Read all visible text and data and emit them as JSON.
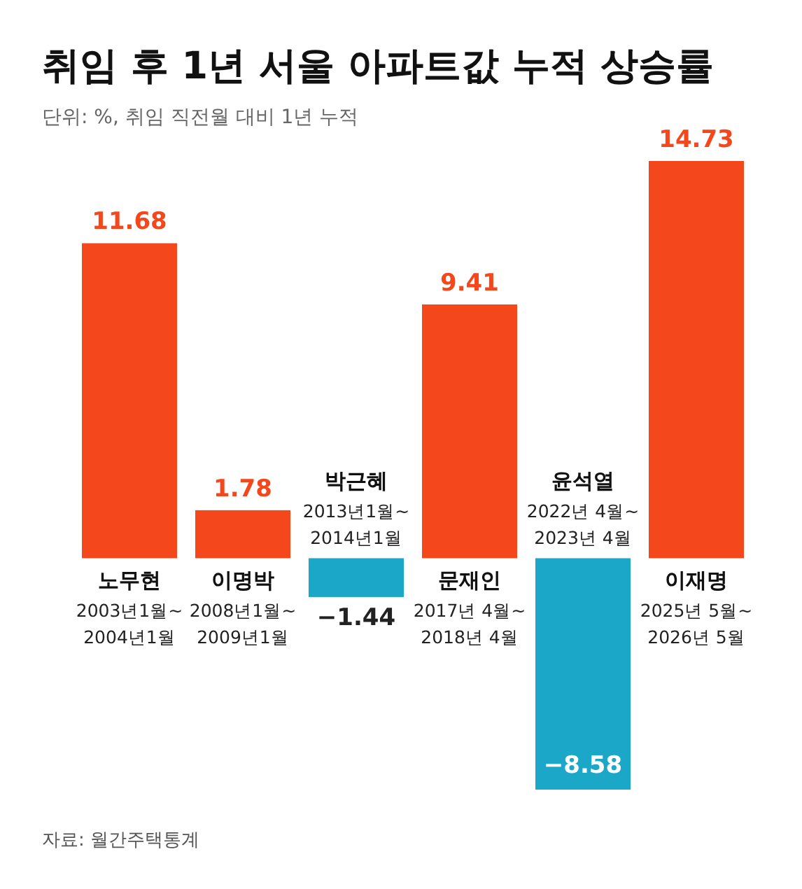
{
  "chart_data": {
    "type": "bar",
    "title": "취임 후 1년 서울 아파트값 누적 상승률",
    "subtitle": "단위: %, 취임 직전월 대비 1년 누적",
    "categories": [
      "노무현",
      "이명박",
      "박근혜",
      "문재인",
      "윤석열",
      "이재명"
    ],
    "values": [
      11.68,
      1.78,
      -1.44,
      9.41,
      -8.58,
      14.73
    ],
    "colors": [
      "#f4471c",
      "#f4471c",
      "#1ba8c8",
      "#f4471c",
      "#1ba8c8",
      "#f4471c"
    ],
    "data_labels": true,
    "annotations": [
      "2003년1월~ 2004년1월",
      "2008년1월~ 2009년1월",
      "2013년1월~ 2014년1월",
      "2017년 4월~ 2018년 4월",
      "2022년 4월~ 2023년 4월",
      "2025년 5월~ 2026년 5월",
      "자료: 월간주택통계"
    ]
  }
}
